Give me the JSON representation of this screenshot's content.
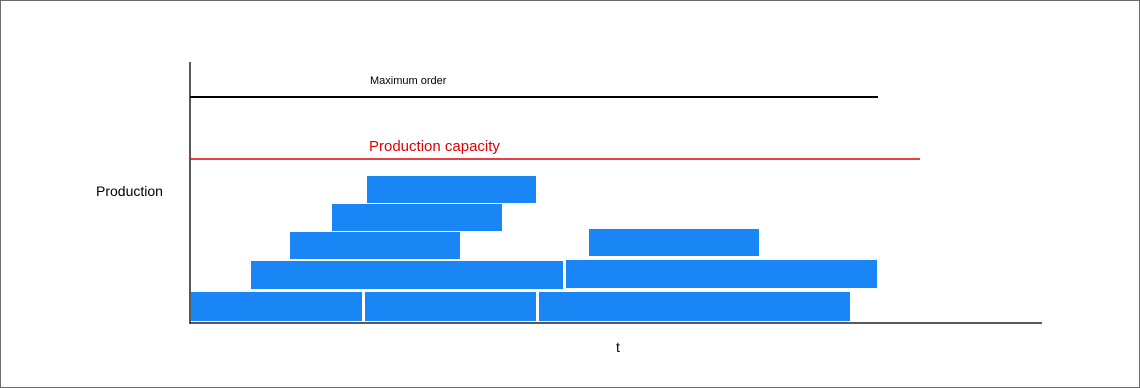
{
  "labels": {
    "maximum_order": "Maximum order",
    "production_capacity": "Production capacity",
    "y_axis": "Production",
    "x_axis": "t"
  },
  "colors": {
    "bar": "#1a86f5",
    "capacity_line": "#e00000",
    "max_order_line": "#000000",
    "axis": "#222222",
    "capacity_text": "#e00000"
  }
}
